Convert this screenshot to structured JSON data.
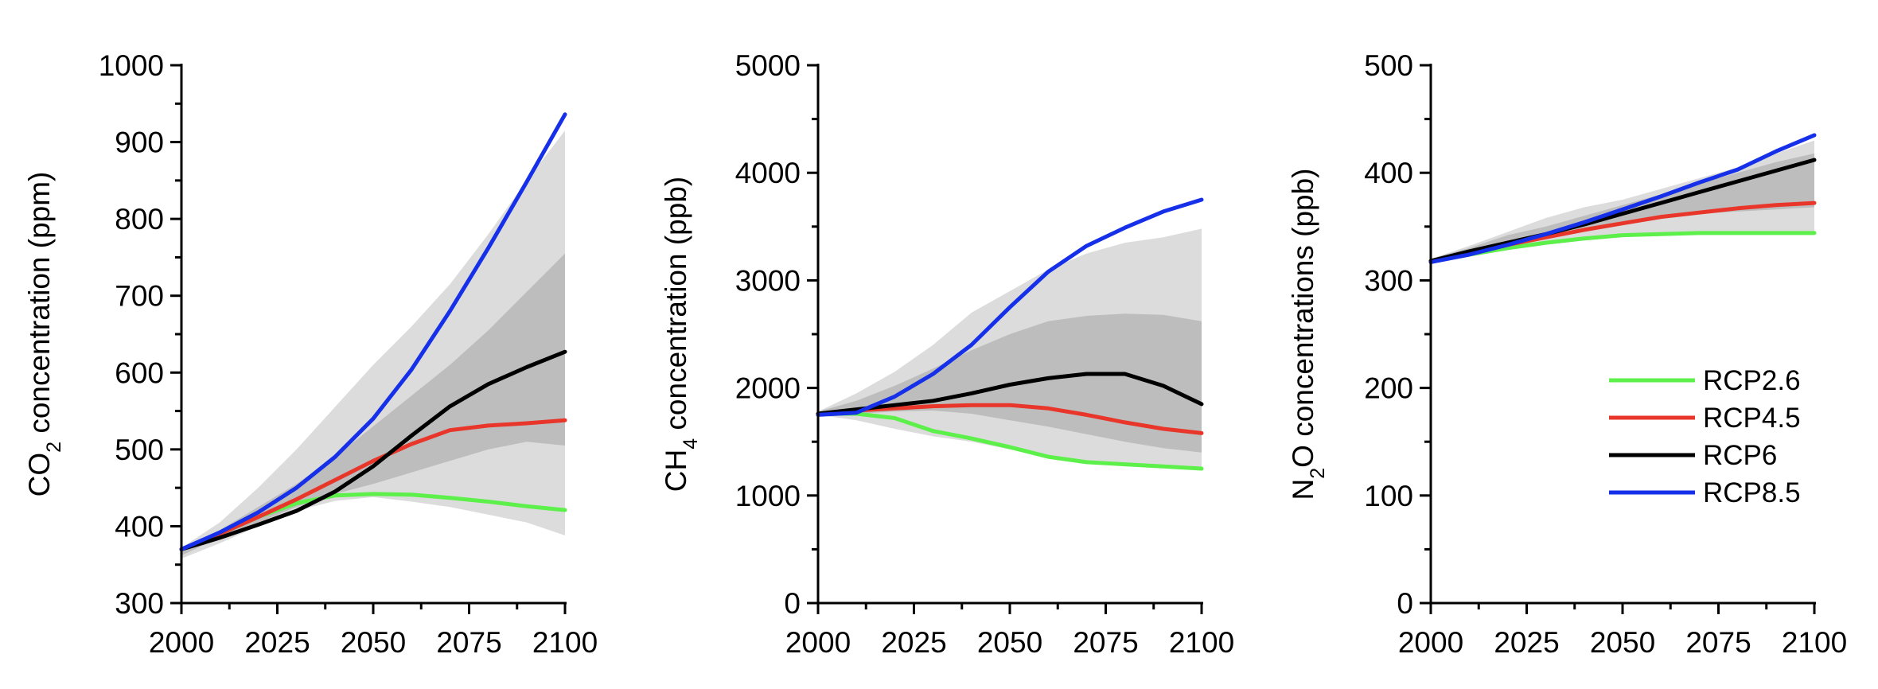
{
  "chart_data": [
    {
      "type": "line",
      "ylabel_main": "CO",
      "ylabel_sub": "2",
      "ylabel_rest": " concentration (ppm)",
      "xlabel": "",
      "xlim": [
        2000,
        2100
      ],
      "ylim": [
        300,
        1000
      ],
      "xticks": [
        2000,
        2025,
        2050,
        2075,
        2100
      ],
      "yticks": [
        300,
        400,
        500,
        600,
        700,
        800,
        900,
        1000
      ],
      "bands": [
        {
          "x": [
            2000,
            2010,
            2020,
            2030,
            2040,
            2050,
            2060,
            2070,
            2080,
            2090,
            2100
          ],
          "upper": [
            372,
            405,
            450,
            500,
            555,
            610,
            660,
            715,
            780,
            850,
            915
          ],
          "lower": [
            358,
            378,
            400,
            420,
            433,
            438,
            432,
            425,
            415,
            405,
            388
          ]
        },
        {
          "x": [
            2000,
            2010,
            2020,
            2030,
            2040,
            2050,
            2060,
            2070,
            2080,
            2090,
            2100
          ],
          "upper": [
            370,
            395,
            425,
            455,
            490,
            530,
            570,
            610,
            655,
            705,
            755
          ],
          "lower": [
            362,
            385,
            405,
            425,
            442,
            455,
            470,
            485,
            500,
            510,
            505
          ]
        }
      ],
      "series": [
        {
          "name": "RCP2.6",
          "x": [
            2000,
            2010,
            2020,
            2030,
            2040,
            2050,
            2060,
            2070,
            2080,
            2090,
            2100
          ],
          "values": [
            370,
            390,
            412,
            430,
            440,
            442,
            441,
            437,
            432,
            426,
            421
          ]
        },
        {
          "name": "RCP4.5",
          "x": [
            2000,
            2010,
            2020,
            2030,
            2040,
            2050,
            2060,
            2070,
            2080,
            2090,
            2100
          ],
          "values": [
            370,
            390,
            412,
            435,
            460,
            485,
            507,
            525,
            531,
            534,
            538
          ]
        },
        {
          "name": "RCP6",
          "x": [
            2000,
            2010,
            2020,
            2030,
            2040,
            2050,
            2060,
            2070,
            2080,
            2090,
            2100
          ],
          "values": [
            370,
            385,
            402,
            420,
            445,
            478,
            518,
            556,
            585,
            607,
            627
          ]
        },
        {
          "name": "RCP8.5",
          "x": [
            2000,
            2010,
            2020,
            2030,
            2040,
            2050,
            2060,
            2070,
            2080,
            2090,
            2100
          ],
          "values": [
            370,
            392,
            418,
            450,
            490,
            540,
            604,
            680,
            762,
            848,
            936
          ]
        }
      ]
    },
    {
      "type": "line",
      "ylabel_main": "CH",
      "ylabel_sub": "4",
      "ylabel_rest": " concentration (ppb)",
      "xlabel": "",
      "xlim": [
        2000,
        2100
      ],
      "ylim": [
        0,
        5000
      ],
      "xticks": [
        2000,
        2025,
        2050,
        2075,
        2100
      ],
      "yticks": [
        0,
        1000,
        2000,
        3000,
        4000,
        5000
      ],
      "bands": [
        {
          "x": [
            2000,
            2010,
            2020,
            2030,
            2040,
            2050,
            2060,
            2070,
            2080,
            2090,
            2100
          ],
          "upper": [
            1780,
            1950,
            2150,
            2400,
            2700,
            2900,
            3100,
            3250,
            3350,
            3400,
            3480
          ],
          "lower": [
            1750,
            1700,
            1620,
            1550,
            1500,
            1430,
            1370,
            1320,
            1280,
            1260,
            1240
          ]
        },
        {
          "x": [
            2000,
            2010,
            2020,
            2030,
            2040,
            2050,
            2060,
            2070,
            2080,
            2090,
            2100
          ],
          "upper": [
            1780,
            1880,
            2020,
            2180,
            2350,
            2500,
            2620,
            2670,
            2690,
            2680,
            2620
          ]
        },
        {
          "x": [
            2000,
            2010,
            2020,
            2030,
            2040,
            2050,
            2060,
            2070,
            2080,
            2090,
            2100
          ],
          "lower": [
            1750,
            1760,
            1780,
            1790,
            1760,
            1700,
            1640,
            1570,
            1500,
            1440,
            1400
          ]
        }
      ],
      "series": [
        {
          "name": "RCP2.6",
          "x": [
            2000,
            2010,
            2020,
            2030,
            2040,
            2050,
            2060,
            2070,
            2080,
            2090,
            2100
          ],
          "values": [
            1760,
            1760,
            1720,
            1600,
            1530,
            1450,
            1360,
            1310,
            1290,
            1270,
            1250
          ]
        },
        {
          "name": "RCP4.5",
          "x": [
            2000,
            2010,
            2020,
            2030,
            2040,
            2050,
            2060,
            2070,
            2080,
            2090,
            2100
          ],
          "values": [
            1760,
            1790,
            1810,
            1830,
            1840,
            1840,
            1810,
            1750,
            1680,
            1620,
            1580
          ]
        },
        {
          "name": "RCP6",
          "x": [
            2000,
            2010,
            2020,
            2030,
            2040,
            2050,
            2060,
            2070,
            2080,
            2090,
            2100
          ],
          "values": [
            1760,
            1800,
            1840,
            1880,
            1950,
            2030,
            2090,
            2130,
            2130,
            2020,
            1850
          ]
        },
        {
          "name": "RCP8.5",
          "x": [
            2000,
            2010,
            2020,
            2030,
            2040,
            2050,
            2060,
            2070,
            2080,
            2090,
            2100
          ],
          "values": [
            1750,
            1770,
            1920,
            2130,
            2400,
            2750,
            3080,
            3320,
            3490,
            3640,
            3750
          ]
        }
      ]
    },
    {
      "type": "line",
      "ylabel_main": "N",
      "ylabel_sub": "2",
      "ylabel_rest": "O concentrations (ppb)",
      "xlabel": "",
      "xlim": [
        2000,
        2100
      ],
      "ylim": [
        0,
        500
      ],
      "xticks": [
        2000,
        2025,
        2050,
        2075,
        2100
      ],
      "yticks": [
        0,
        100,
        200,
        300,
        400,
        500
      ],
      "bands": [
        {
          "x": [
            2000,
            2010,
            2020,
            2030,
            2040,
            2050,
            2060,
            2070,
            2080,
            2090,
            2100
          ],
          "upper": [
            320,
            332,
            345,
            358,
            368,
            375,
            385,
            395,
            405,
            418,
            430
          ],
          "lower": [
            316,
            322,
            328,
            333,
            337,
            340,
            342,
            343,
            344,
            345,
            345
          ]
        },
        {
          "x": [
            2000,
            2010,
            2020,
            2030,
            2040,
            2050,
            2060,
            2070,
            2080,
            2090,
            2100
          ],
          "upper": [
            320,
            330,
            342,
            350,
            360,
            370,
            380,
            390,
            400,
            410,
            418
          ],
          "lower": [
            316,
            325,
            332,
            340,
            347,
            353,
            358,
            362,
            364,
            366,
            368
          ]
        }
      ],
      "series": [
        {
          "name": "RCP2.6",
          "x": [
            2000,
            2010,
            2020,
            2030,
            2040,
            2050,
            2060,
            2070,
            2080,
            2090,
            2100
          ],
          "values": [
            318,
            324,
            330,
            335,
            339,
            342,
            343,
            344,
            344,
            344,
            344
          ]
        },
        {
          "name": "RCP4.5",
          "x": [
            2000,
            2010,
            2020,
            2030,
            2040,
            2050,
            2060,
            2070,
            2080,
            2090,
            2100
          ],
          "values": [
            318,
            325,
            333,
            340,
            347,
            353,
            359,
            363,
            367,
            370,
            372
          ]
        },
        {
          "name": "RCP6",
          "x": [
            2000,
            2010,
            2020,
            2030,
            2040,
            2050,
            2060,
            2070,
            2080,
            2090,
            2100
          ],
          "values": [
            318,
            327,
            335,
            343,
            352,
            362,
            372,
            382,
            392,
            402,
            412
          ]
        },
        {
          "name": "RCP8.5",
          "x": [
            2000,
            2010,
            2020,
            2030,
            2040,
            2050,
            2060,
            2070,
            2080,
            2090,
            2100
          ],
          "values": [
            317,
            324,
            333,
            343,
            354,
            366,
            378,
            391,
            403,
            420,
            435
          ]
        }
      ]
    }
  ],
  "legend": {
    "placement": "lower-right of third panel",
    "items": [
      {
        "label": "RCP2.6",
        "color": "#5df04a"
      },
      {
        "label": "RCP4.5",
        "color": "#e8372a"
      },
      {
        "label": "RCP6",
        "color": "#000000"
      },
      {
        "label": "RCP8.5",
        "color": "#1530e8"
      }
    ]
  },
  "colors": {
    "band_light": "#dcdcdc",
    "band_dark": "#bdbdbd",
    "RCP2.6": "#5df04a",
    "RCP4.5": "#e8372a",
    "RCP6": "#000000",
    "RCP8.5": "#1530e8"
  }
}
